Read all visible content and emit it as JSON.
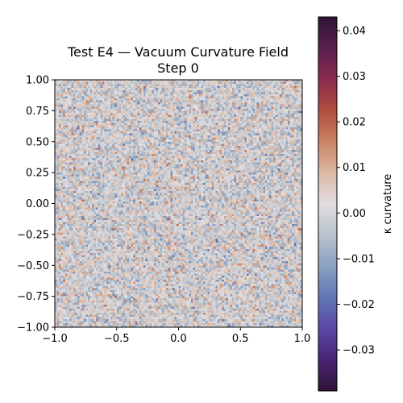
{
  "chart_data": {
    "type": "heatmap",
    "title_lines": [
      "Test E4 — Vacuum Curvature Field",
      "Step 0"
    ],
    "xlabel": "",
    "ylabel": "",
    "xlim": [
      -1.0,
      1.0
    ],
    "ylim": [
      -1.0,
      1.0
    ],
    "x_ticks": [
      -1.0,
      -0.5,
      0.0,
      0.5,
      1.0
    ],
    "x_tick_labels": [
      "−1.0",
      "−0.5",
      "0.0",
      "0.5",
      "1.0"
    ],
    "y_ticks": [
      1.0,
      0.75,
      0.5,
      0.25,
      0.0,
      -0.25,
      -0.5,
      -0.75,
      -1.0
    ],
    "y_tick_labels": [
      "1.00",
      "0.75",
      "0.50",
      "0.25",
      "0.00",
      "−0.25",
      "−0.50",
      "−0.75",
      "−1.00"
    ],
    "grid": false,
    "field_description": "random noise, roughly zero-mean",
    "colorbar": {
      "label": "κ curvature",
      "vmin": -0.039,
      "vmax": 0.043,
      "ticks": [
        0.04,
        0.03,
        0.02,
        0.01,
        0.0,
        -0.01,
        -0.02,
        -0.03
      ],
      "tick_labels": [
        "0.04",
        "0.03",
        "0.02",
        "0.01",
        "0.00",
        "−0.01",
        "−0.02",
        "−0.03"
      ],
      "colormap_stops": [
        "#2f1436",
        "#5a1f4e",
        "#8a2b4e",
        "#b04e3e",
        "#c98364",
        "#dbb9a4",
        "#e2dde0",
        "#b8c2cb",
        "#8aa1c2",
        "#6077b6",
        "#5a48a4",
        "#4a2475",
        "#2f1436"
      ]
    }
  }
}
